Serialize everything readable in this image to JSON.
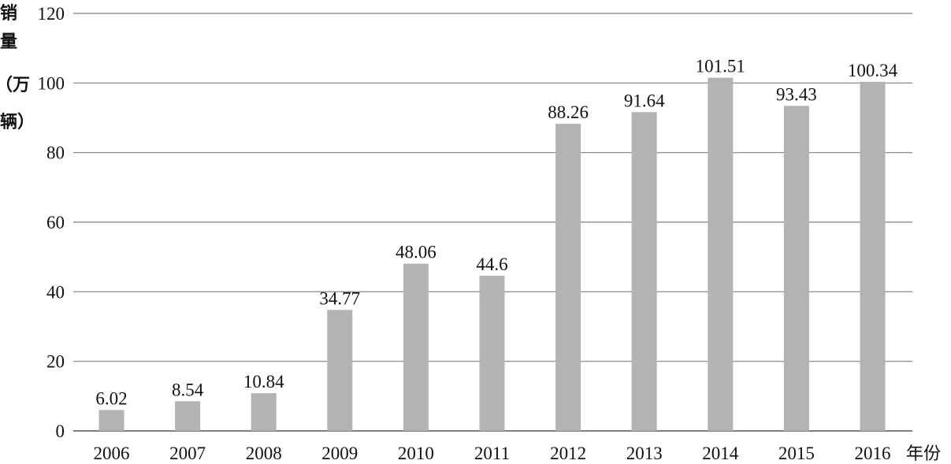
{
  "chart_data": {
    "type": "bar",
    "categories": [
      "2006",
      "2007",
      "2008",
      "2009",
      "2010",
      "2011",
      "2012",
      "2013",
      "2014",
      "2015",
      "2016"
    ],
    "values": [
      6.02,
      8.54,
      10.84,
      34.77,
      48.06,
      44.6,
      88.26,
      91.64,
      101.51,
      93.43,
      100.34
    ],
    "value_labels": [
      "6.02",
      "8.54",
      "10.84",
      "34.77",
      "48.06",
      "44.6",
      "88.26",
      "91.64",
      "101.51",
      "93.43",
      "100.34"
    ],
    "ylabel": [
      "销",
      "量",
      "（万",
      "辆）"
    ],
    "xlabel": "年份",
    "ylim": [
      0,
      120
    ],
    "yticks": [
      "0",
      "20",
      "40",
      "60",
      "80",
      "100",
      "120"
    ],
    "grid": true,
    "legend": "none",
    "colors": {
      "bar": "#b3b3b3",
      "grid": "#7f7f7f",
      "axis": "#555555"
    }
  }
}
